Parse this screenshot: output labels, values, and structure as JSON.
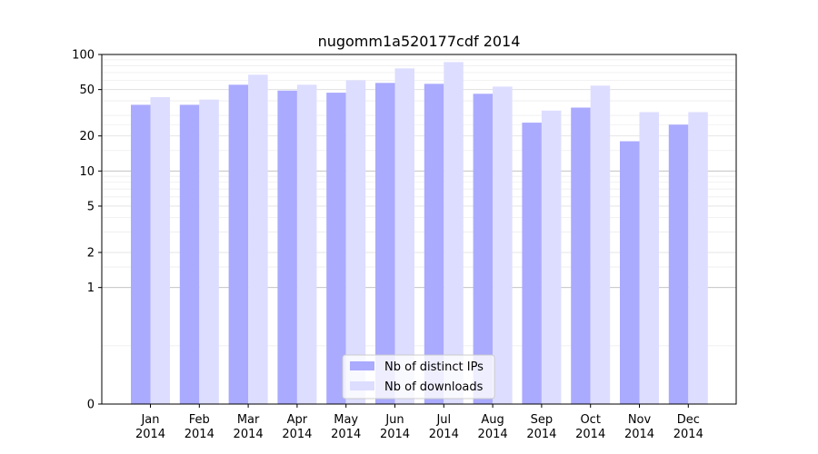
{
  "chart_data": {
    "type": "bar",
    "title": "nugomm1a520177cdf 2014",
    "xlabel": "",
    "ylabel": "",
    "y_scale": "symlog",
    "ylim": [
      0,
      100
    ],
    "y_ticks": [
      0,
      1,
      2,
      5,
      10,
      20,
      50,
      100
    ],
    "y_tick_labels": [
      "0",
      "1",
      "2",
      "5",
      "10",
      "20",
      "50",
      "100"
    ],
    "categories": [
      "Jan\n2014",
      "Feb\n2014",
      "Mar\n2014",
      "Apr\n2014",
      "May\n2014",
      "Jun\n2014",
      "Jul\n2014",
      "Aug\n2014",
      "Sep\n2014",
      "Oct\n2014",
      "Nov\n2014",
      "Dec\n2014"
    ],
    "series": [
      {
        "name": "Nb of distinct IPs",
        "color": "#aaaaff",
        "values": [
          37,
          37,
          55,
          49,
          47,
          57,
          56,
          46,
          26,
          35,
          18,
          25
        ]
      },
      {
        "name": "Nb of downloads",
        "color": "#ddddff",
        "values": [
          43,
          41,
          67,
          55,
          60,
          76,
          86,
          53,
          33,
          54,
          32,
          32
        ]
      }
    ],
    "legend_position": "bottom-center",
    "grid": "horizontal"
  }
}
